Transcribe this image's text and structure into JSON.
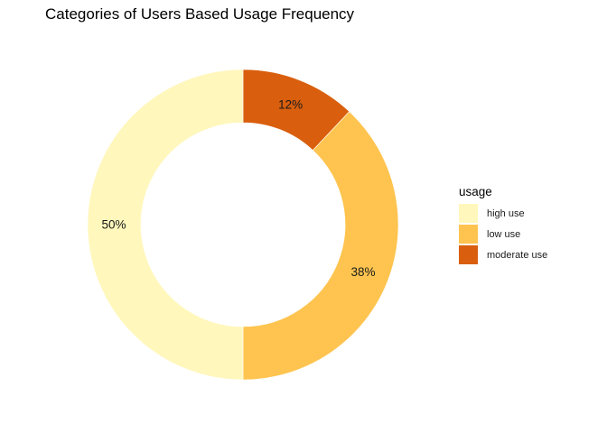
{
  "chart_data": {
    "type": "pie",
    "title": "Categories of Users Based Usage Frequency",
    "legend_title": "usage",
    "legend_position": "right",
    "grid": false,
    "slices": [
      {
        "category": "high use",
        "value": 50,
        "label": "50%",
        "color": "#FFF7BC"
      },
      {
        "category": "low use",
        "value": 38,
        "label": "38%",
        "color": "#FEC44F"
      },
      {
        "category": "moderate use",
        "value": 12,
        "label": "12%",
        "color": "#D95F0E"
      }
    ]
  }
}
